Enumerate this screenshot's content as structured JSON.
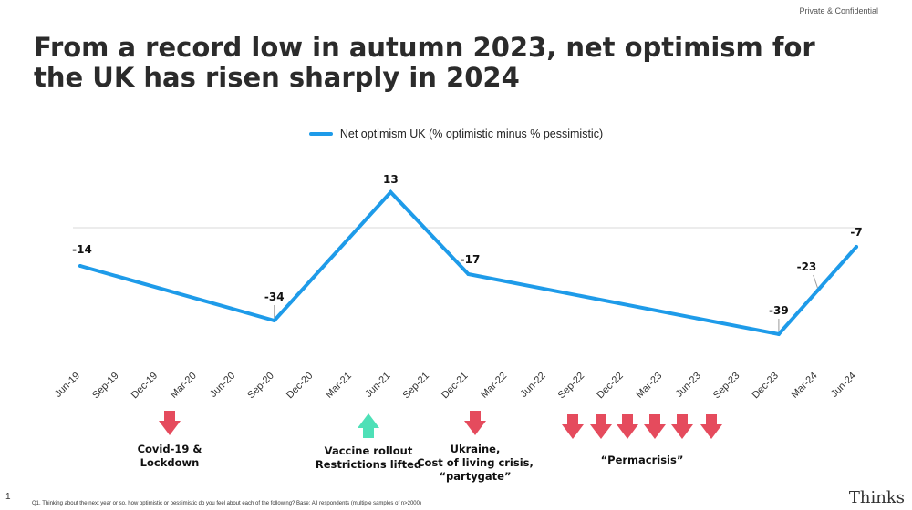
{
  "header": {
    "confidential": "Private & Confidential",
    "title": "From a record low in autumn 2023, net optimism for the UK has risen sharply in 2024"
  },
  "chart_data": {
    "type": "line",
    "title": "",
    "xlabel": "",
    "ylabel": "",
    "categories": [
      "Jun-19",
      "Sep-19",
      "Dec-19",
      "Mar-20",
      "Jun-20",
      "Sep-20",
      "Dec-20",
      "Mar-21",
      "Jun-21",
      "Sep-21",
      "Dec-21",
      "Mar-22",
      "Jun-22",
      "Sep-22",
      "Dec-22",
      "Mar-23",
      "Jun-23",
      "Sep-23",
      "Dec-23",
      "Mar-24",
      "Jun-24"
    ],
    "series": [
      {
        "name": "Net optimism UK (% optimistic minus % pessimistic)",
        "color": "#1e9be9",
        "points": [
          {
            "x": "Jun-19",
            "y": -14
          },
          {
            "x": "Sep-20",
            "y": -34
          },
          {
            "x": "Jun-21",
            "y": 13
          },
          {
            "x": "Dec-21",
            "y": -17
          },
          {
            "x": "Dec-23",
            "y": -39
          },
          {
            "x": "Mar-24",
            "y": -23
          },
          {
            "x": "Jun-24",
            "y": -7
          }
        ]
      }
    ],
    "ylim": [
      -60,
      20
    ],
    "legend_position": "top-center",
    "grid": false,
    "zero_line": true
  },
  "annotations": [
    {
      "text": "Covid-19 &\nLockdown",
      "at": "Mar-20",
      "arrow": "down",
      "color": "#e54b5d"
    },
    {
      "text": "Vaccine rollout\nRestrictions lifted",
      "at": "Jun-21",
      "arrow": "up",
      "color": "#4ee0b7"
    },
    {
      "text": "Ukraine,\nCost of living crisis,\n“partygate”",
      "at": "Mar-22",
      "arrow": "down",
      "color": "#e54b5d"
    },
    {
      "text": "“Permacrisis”",
      "at": "Mar-23",
      "arrow": "down-multiple",
      "arrow_count": 6,
      "color": "#e54b5d"
    }
  ],
  "footer": {
    "page": "1",
    "footnote": "Q1. Thinking about the next year or so, how optimistic or pessimistic do you feel about each of the following? Base: All respondents (multiple samples of n>2000)",
    "brand": "Thinks"
  }
}
